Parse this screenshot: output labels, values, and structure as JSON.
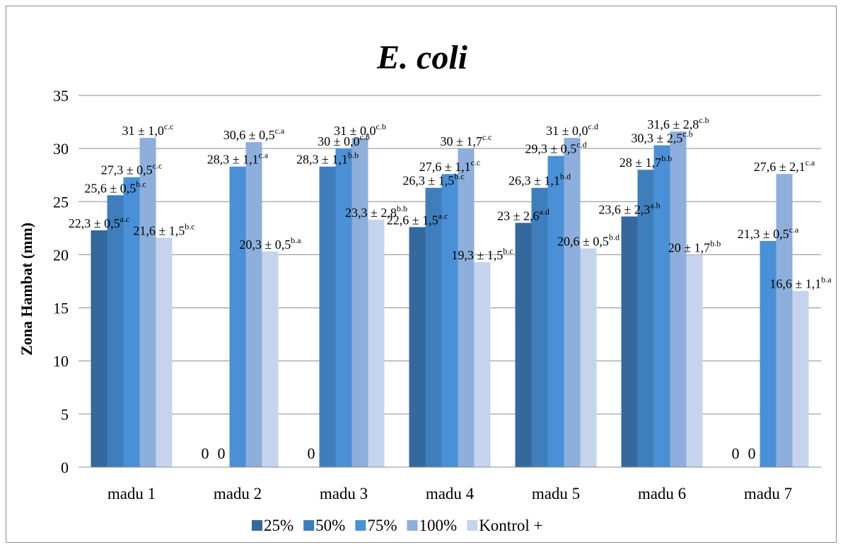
{
  "chart_data": {
    "type": "bar",
    "title": "E. coli",
    "ylabel": "Zona Hambat (mm)",
    "xlabel": "",
    "ylim": [
      0,
      35
    ],
    "yticks": [
      0,
      5,
      10,
      15,
      20,
      25,
      30,
      35
    ],
    "grid": true,
    "legend_position": "bottom",
    "categories": [
      "madu 1",
      "madu 2",
      "madu 3",
      "madu 4",
      "madu 5",
      "madu 6",
      "madu 7"
    ],
    "series": [
      {
        "name": "25%",
        "color": "#35689d",
        "values": [
          22.3,
          0,
          0,
          22.6,
          23,
          23.6,
          0
        ],
        "labels": [
          {
            "main": "22,3 ± 0,5",
            "sup": "a.c"
          },
          {
            "main": "0",
            "sup": ""
          },
          {
            "main": "0",
            "sup": ""
          },
          {
            "main": "22,6 ± 1,5",
            "sup": "a.c"
          },
          {
            "main": "23 ± 2,6",
            "sup": "a.d"
          },
          {
            "main": "23,6 ± 2,3",
            "sup": "a.b"
          },
          {
            "main": "0",
            "sup": ""
          }
        ]
      },
      {
        "name": "50%",
        "color": "#3f7ebd",
        "values": [
          25.6,
          0,
          28.3,
          26.3,
          26.3,
          28,
          0
        ],
        "labels": [
          {
            "main": "25,6 ± 0,5",
            "sup": "b.c"
          },
          {
            "main": "0",
            "sup": ""
          },
          {
            "main": "28,3 ± 1,1",
            "sup": "b.b"
          },
          {
            "main": "26,3 ± 1,5",
            "sup": "b.c"
          },
          {
            "main": "26,3 ± 1,1",
            "sup": "b.d"
          },
          {
            "main": "28 ± 1,7",
            "sup": "b.b"
          },
          {
            "main": "0",
            "sup": ""
          }
        ]
      },
      {
        "name": "75%",
        "color": "#4a90d6",
        "values": [
          27.3,
          28.3,
          30,
          27.6,
          29.3,
          30.3,
          21.3
        ],
        "labels": [
          {
            "main": "27,3 ± 0,5",
            "sup": "c.c"
          },
          {
            "main": "28,3 ± 1,1",
            "sup": "c.a"
          },
          {
            "main": "30 ± 0,0",
            "sup": "c.b"
          },
          {
            "main": "27,6 ± 1,1",
            "sup": "c.c"
          },
          {
            "main": "29,3 ± 0,5",
            "sup": "c.d"
          },
          {
            "main": "30,3 ± 2,5",
            "sup": "c.b"
          },
          {
            "main": "21,3 ± 0,5",
            "sup": "c.a"
          }
        ]
      },
      {
        "name": "100%",
        "color": "#8eaedb",
        "values": [
          31,
          30.6,
          31,
          30,
          31,
          31.6,
          27.6
        ],
        "labels": [
          {
            "main": "31 ± 1,0",
            "sup": "c.c"
          },
          {
            "main": "30,6 ± 0,5",
            "sup": "c.a"
          },
          {
            "main": "31 ± 0,0",
            "sup": "c.b"
          },
          {
            "main": "30 ± 1,7",
            "sup": "c.c"
          },
          {
            "main": "31 ± 0,0",
            "sup": "c.d"
          },
          {
            "main": "31,6 ± 2,8",
            "sup": "c.b"
          },
          {
            "main": "27,6 ± 2,1",
            "sup": "c.a"
          }
        ]
      },
      {
        "name": "Kontrol +",
        "color": "#c5d4ec",
        "values": [
          21.6,
          20.3,
          23.3,
          19.3,
          20.6,
          20,
          16.6
        ],
        "labels": [
          {
            "main": "21,6 ± 1,5",
            "sup": "b.c"
          },
          {
            "main": "20,3 ± 0,5",
            "sup": "b.a"
          },
          {
            "main": "23,3 ± 2,8",
            "sup": "b.b"
          },
          {
            "main": "19,3 ± 1,5",
            "sup": "b.c"
          },
          {
            "main": "20,6 ± 0,5",
            "sup": "b.d"
          },
          {
            "main": "20 ± 1,7",
            "sup": "b.b"
          },
          {
            "main": "16,6 ± 1,1",
            "sup": "b.a"
          }
        ]
      }
    ]
  }
}
